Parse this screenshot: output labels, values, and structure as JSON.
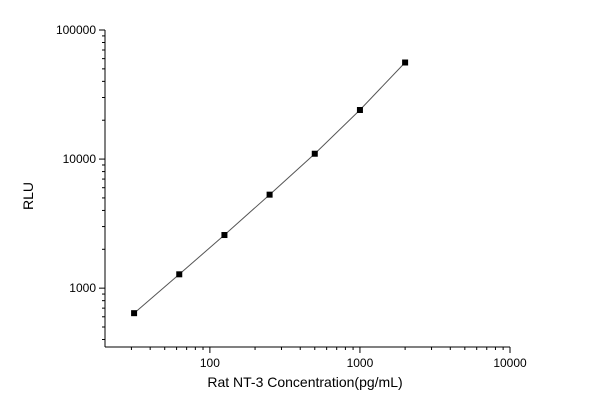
{
  "chart_data": {
    "type": "scatter",
    "xlabel": "Rat NT-3 Concentration(pg/mL)",
    "ylabel": "RLU",
    "x_scale": "log",
    "y_scale": "log",
    "xlim": [
      20,
      10000
    ],
    "ylim": [
      350,
      100000
    ],
    "x_ticks": [
      100,
      1000,
      10000
    ],
    "x_tick_labels": [
      "100",
      "1000",
      "10000"
    ],
    "y_ticks": [
      1000,
      10000,
      100000
    ],
    "y_tick_labels": [
      "1000",
      "10000",
      "100000"
    ],
    "grid": false,
    "legend": "none",
    "series": [
      {
        "x": [
          31.25,
          62.5,
          125,
          250,
          500,
          1000,
          2000
        ],
        "y": [
          640,
          1280,
          2580,
          5300,
          11000,
          24000,
          56000
        ]
      }
    ],
    "fit_line": true
  },
  "colors": {
    "points": "#000000",
    "fit_line": "#555555",
    "axes": "#000000"
  }
}
